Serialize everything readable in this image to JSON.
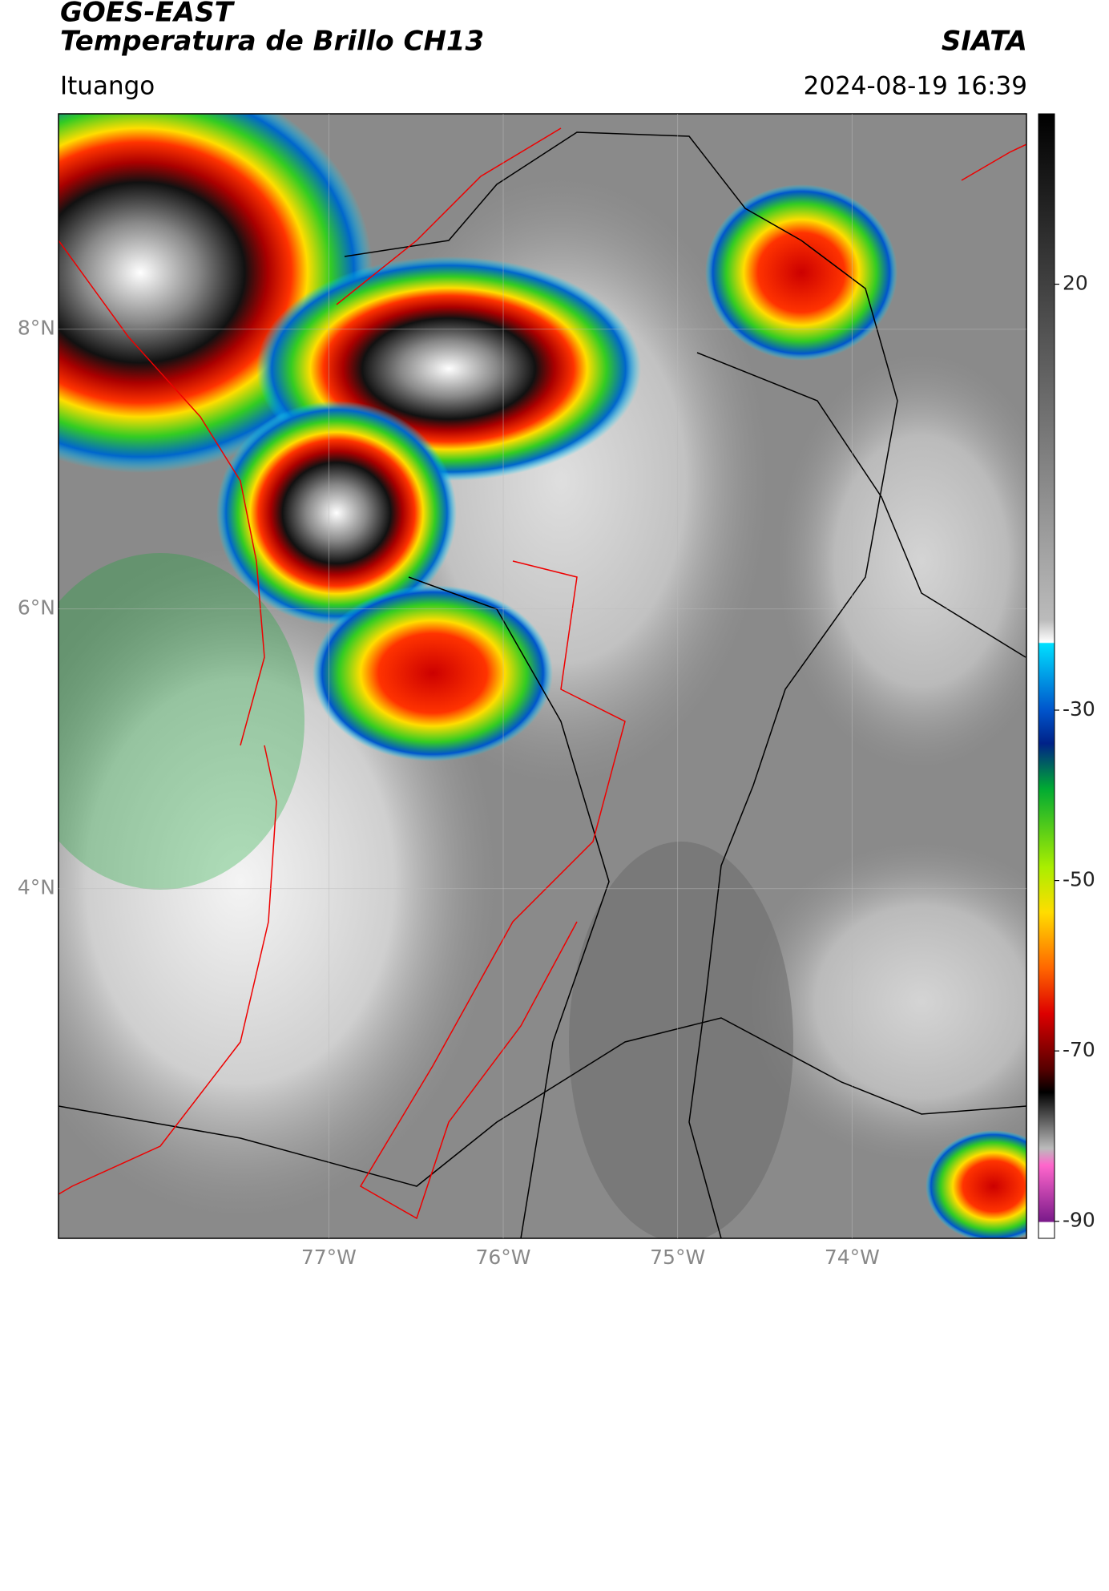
{
  "header": {
    "title_line1": "GOES-EAST",
    "title_line2": "Temperatura de Brillo CH13",
    "source": "SIATA",
    "region": "Ituango",
    "datetime": "2024-08-19 16:39"
  },
  "map": {
    "lat_lim": [
      1.5,
      9.54
    ],
    "lon_lim": [
      -78.55,
      -73.0
    ],
    "lat_ticks": [
      {
        "value": 8,
        "label": "8°N"
      },
      {
        "value": 6,
        "label": "6°N"
      },
      {
        "value": 4,
        "label": "4°N"
      }
    ],
    "lon_ticks": [
      {
        "value": -77,
        "label": "77°W"
      },
      {
        "value": -76,
        "label": "76°W"
      },
      {
        "value": -75,
        "label": "75°W"
      },
      {
        "value": -74,
        "label": "74°W"
      }
    ]
  },
  "colorbar": {
    "lim": [
      -92,
      40
    ],
    "ticks": [
      20,
      -30,
      -50,
      -70,
      -90
    ]
  }
}
